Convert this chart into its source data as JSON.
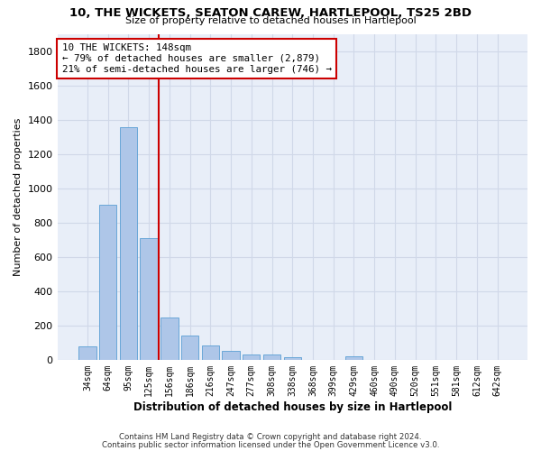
{
  "title": "10, THE WICKETS, SEATON CAREW, HARTLEPOOL, TS25 2BD",
  "subtitle": "Size of property relative to detached houses in Hartlepool",
  "xlabel": "Distribution of detached houses by size in Hartlepool",
  "ylabel": "Number of detached properties",
  "categories": [
    "34sqm",
    "64sqm",
    "95sqm",
    "125sqm",
    "156sqm",
    "186sqm",
    "216sqm",
    "247sqm",
    "277sqm",
    "308sqm",
    "338sqm",
    "368sqm",
    "399sqm",
    "429sqm",
    "460sqm",
    "490sqm",
    "520sqm",
    "551sqm",
    "581sqm",
    "612sqm",
    "642sqm"
  ],
  "values": [
    80,
    905,
    1355,
    710,
    245,
    140,
    85,
    50,
    30,
    30,
    15,
    0,
    0,
    20,
    0,
    0,
    0,
    0,
    0,
    0,
    0
  ],
  "bar_color": "#aec6e8",
  "bar_edge_color": "#5a9fd4",
  "grid_color": "#d0d8e8",
  "bg_color": "#e8eef8",
  "vline_color": "#cc0000",
  "annotation_text": "10 THE WICKETS: 148sqm\n← 79% of detached houses are smaller (2,879)\n21% of semi-detached houses are larger (746) →",
  "annotation_box_color": "#cc0000",
  "ylim": [
    0,
    1900
  ],
  "yticks": [
    0,
    200,
    400,
    600,
    800,
    1000,
    1200,
    1400,
    1600,
    1800
  ],
  "vline_bar_index": 3.5,
  "footer_line1": "Contains HM Land Registry data © Crown copyright and database right 2024.",
  "footer_line2": "Contains public sector information licensed under the Open Government Licence v3.0."
}
